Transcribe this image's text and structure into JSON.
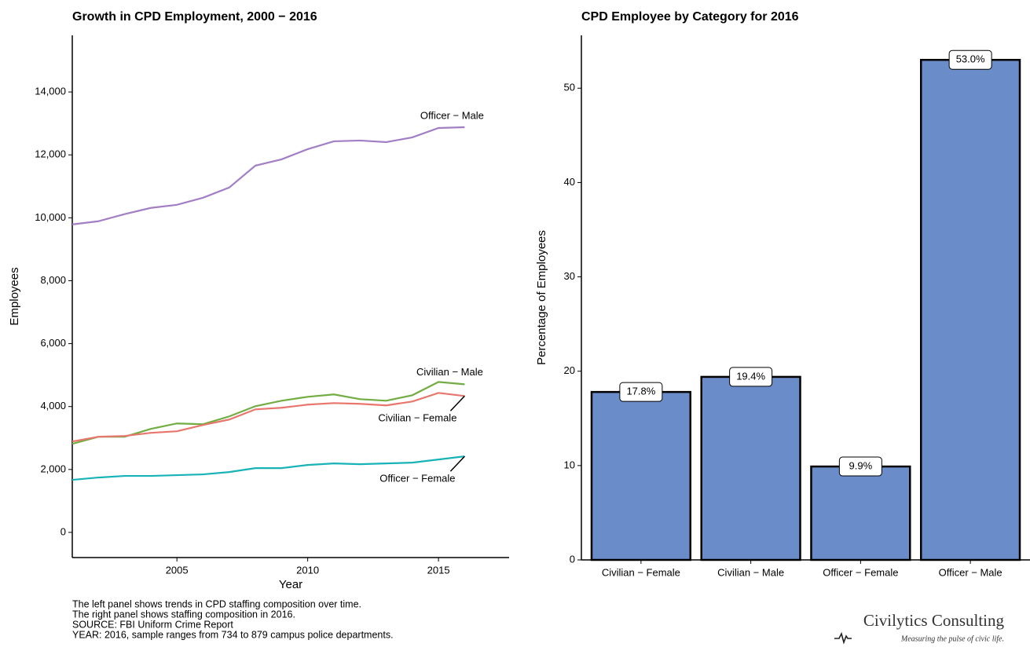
{
  "chart_data": [
    {
      "type": "line",
      "title": "Growth in CPD Employment, 2000 − 2016",
      "x_label": "Year",
      "y_label": "Employees",
      "x": [
        2001,
        2002,
        2003,
        2004,
        2005,
        2006,
        2007,
        2008,
        2009,
        2010,
        2011,
        2012,
        2013,
        2014,
        2015,
        2016
      ],
      "series": [
        {
          "name": "Officer − Male",
          "color": "#a27fc5",
          "values": [
            9790,
            9890,
            10115,
            10314,
            10413,
            10638,
            10962,
            11659,
            11858,
            12182,
            12431,
            12456,
            12406,
            12556,
            12855,
            12880
          ]
        },
        {
          "name": "Civilian − Male",
          "color": "#72ad44",
          "values": [
            2815,
            3040,
            3040,
            3290,
            3463,
            3438,
            3687,
            4011,
            4185,
            4310,
            4385,
            4235,
            4185,
            4360,
            4783,
            4708
          ]
        },
        {
          "name": "Civilian − Female",
          "color": "#e8766d",
          "values": [
            2890,
            3040,
            3064,
            3164,
            3214,
            3413,
            3587,
            3911,
            3961,
            4061,
            4110,
            4086,
            4036,
            4160,
            4434,
            4335
          ]
        },
        {
          "name": "Officer − Female",
          "color": "#17b3b8",
          "values": [
            1669,
            1744,
            1794,
            1794,
            1819,
            1844,
            1918,
            2043,
            2043,
            2142,
            2192,
            2167,
            2192,
            2217,
            2317,
            2417
          ]
        }
      ],
      "xlim": [
        2001,
        2017.7
      ],
      "xticks": [
        2005,
        2010,
        2015
      ],
      "ylim": [
        -800,
        15800
      ],
      "yticks": [
        0,
        {
          "value": 2000,
          "label": "2,000"
        },
        {
          "value": 4000,
          "label": "4,000"
        },
        {
          "value": 6000,
          "label": "6,000"
        },
        {
          "value": 8000,
          "label": "8,000"
        },
        {
          "value": 10000,
          "label": "10,000"
        },
        {
          "value": 12000,
          "label": "12,000"
        },
        {
          "value": 14000,
          "label": "14,000"
        }
      ],
      "grid": false
    },
    {
      "type": "bar",
      "title": "CPD Employee by Category for 2016",
      "y_label": "Percentage of Employees",
      "categories": [
        "Civilian − Female",
        "Civilian − Male",
        "Officer − Female",
        "Officer − Male"
      ],
      "values": [
        17.8,
        19.4,
        9.9,
        53.0
      ],
      "value_labels": [
        "17.8%",
        "19.4%",
        "9.9%",
        "53.0%"
      ],
      "color": "#6a8dc9",
      "ylim": [
        0,
        55.6
      ],
      "yticks": [
        0,
        10,
        20,
        30,
        40,
        50
      ],
      "grid": false
    }
  ],
  "caption": [
    "The left panel shows trends in CPD staffing composition over time.",
    "The right panel shows staffing composition in 2016.",
    "SOURCE:  FBI Uniform Crime Report",
    "YEAR: 2016, sample ranges from 734 to 879 campus police departments."
  ],
  "logo": {
    "name": "Civilytics Consulting",
    "tagline": "Measuring the pulse of civic life."
  }
}
